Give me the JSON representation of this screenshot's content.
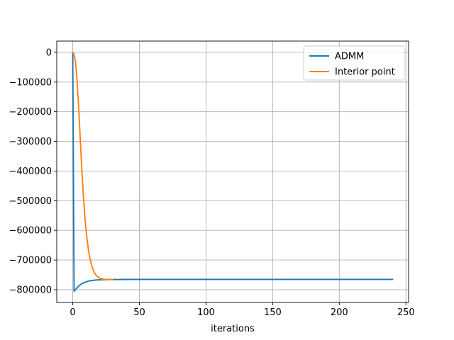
{
  "chart_data": {
    "type": "line",
    "title": "",
    "xlabel": "iterations",
    "ylabel": "",
    "xlim": [
      -12,
      252
    ],
    "ylim": [
      -843000,
      38000
    ],
    "x_ticks": [
      0,
      50,
      100,
      150,
      200,
      250
    ],
    "y_ticks": [
      0,
      -100000,
      -200000,
      -300000,
      -400000,
      -500000,
      -600000,
      -700000,
      -800000
    ],
    "x_tick_labels": [
      "0",
      "50",
      "100",
      "150",
      "200",
      "250"
    ],
    "y_tick_labels": [
      "0",
      "−100000",
      "−200000",
      "−300000",
      "−400000",
      "−500000",
      "−600000",
      "−700000",
      "−800000"
    ],
    "grid": true,
    "legend_position": "top-right",
    "series": [
      {
        "name": "ADMM",
        "color": "#1f77b4",
        "x": [
          0,
          1,
          2,
          3,
          4,
          5,
          6,
          8,
          10,
          12,
          15,
          18,
          21,
          25,
          30,
          35,
          40,
          50,
          60,
          80,
          100,
          120,
          150,
          180,
          200,
          220,
          240
        ],
        "y": [
          0,
          -805000,
          -800000,
          -795000,
          -790000,
          -786000,
          -782000,
          -777000,
          -773500,
          -771000,
          -768500,
          -767200,
          -766500,
          -766000,
          -765700,
          -765500,
          -765400,
          -765300,
          -765200,
          -765200,
          -765200,
          -765200,
          -765200,
          -765200,
          -765200,
          -765200,
          -765200
        ]
      },
      {
        "name": "Interior point",
        "color": "#ff7f0e",
        "x": [
          0,
          1,
          2,
          3,
          4,
          5,
          6,
          7,
          8,
          9,
          10,
          11,
          12,
          13,
          14,
          15,
          16,
          17,
          18,
          19,
          20,
          21,
          22,
          23,
          24,
          25,
          26,
          27,
          28,
          29,
          30
        ],
        "y": [
          0,
          -8000,
          -30000,
          -80000,
          -150000,
          -235000,
          -325000,
          -410000,
          -485000,
          -550000,
          -600000,
          -640000,
          -672000,
          -696000,
          -715000,
          -729000,
          -740000,
          -748000,
          -753500,
          -757500,
          -760500,
          -762500,
          -763800,
          -764600,
          -765000,
          -765200,
          -765300,
          -765300,
          -765300,
          -765300,
          -765300
        ]
      }
    ]
  }
}
